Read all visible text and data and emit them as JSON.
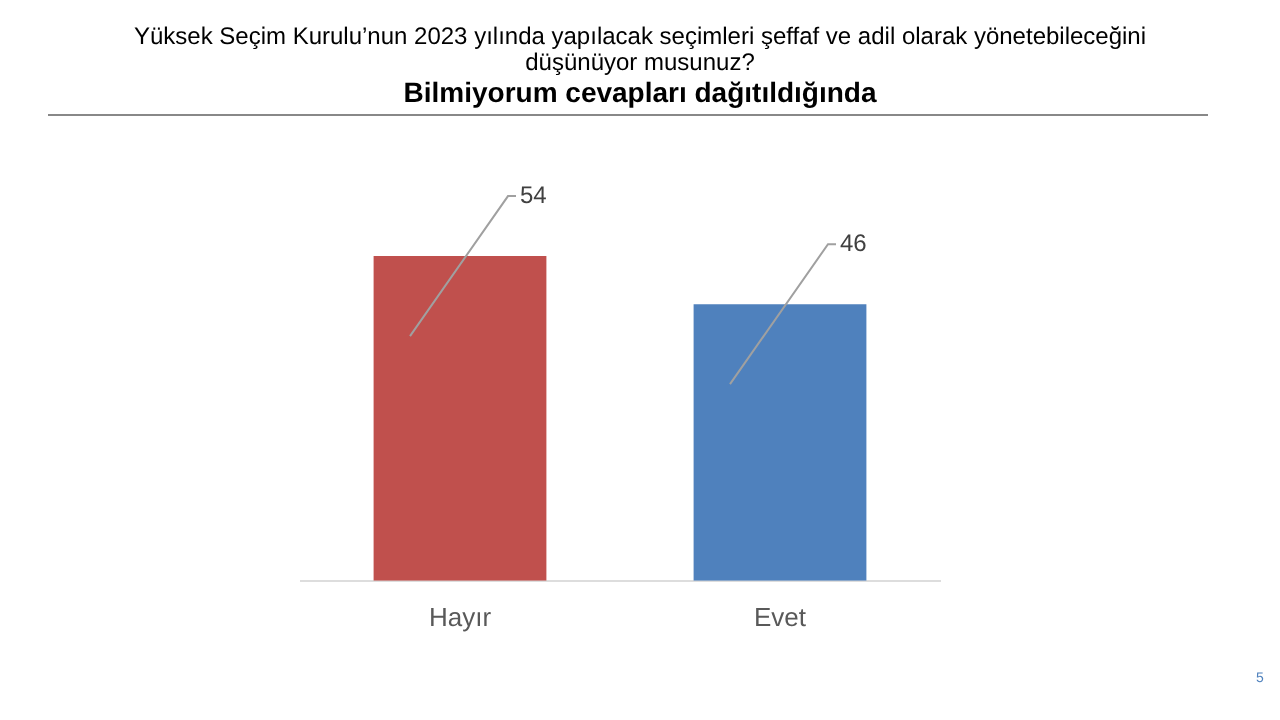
{
  "chart_data": {
    "type": "bar",
    "title": "Yüksek Seçim Kurulu’nun 2023 yılında yapılacak seçimleri şeffaf ve adil olarak yönetebileceğini düşünüyor musunuz?",
    "subtitle": "Bilmiyorum cevapları dağıtıldığında",
    "categories": [
      "Hayır",
      "Evet"
    ],
    "values": [
      54,
      46
    ],
    "colors": [
      "#c0504d",
      "#4f81bd"
    ],
    "data_labels": true,
    "grid": false,
    "legend": false,
    "annotations": [
      "5"
    ]
  }
}
